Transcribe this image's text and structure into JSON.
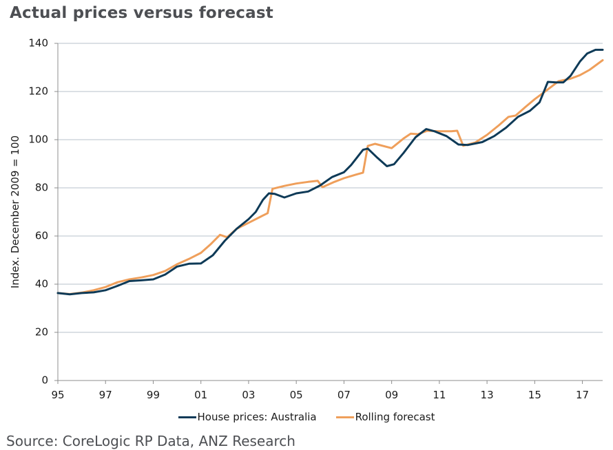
{
  "title": "Actual prices versus forecast",
  "source": "Source: CoreLogic RP Data, ANZ Research",
  "colors": {
    "house_prices": "#0e3a57",
    "rolling_forecast": "#ef9f5b",
    "grid": "#b7c2cb",
    "axis": "#8c8c8c"
  },
  "chart_data": {
    "type": "line",
    "title": "Actual prices versus forecast",
    "xlabel": "",
    "ylabel": "Index. December 2009 = 100",
    "xlim": [
      1995,
      2017.85
    ],
    "ylim": [
      0,
      140
    ],
    "yticks": [
      0,
      20,
      40,
      60,
      80,
      100,
      120,
      140
    ],
    "xticks": [
      {
        "value": 1995,
        "label": "95"
      },
      {
        "value": 1997,
        "label": "97"
      },
      {
        "value": 1999,
        "label": "99"
      },
      {
        "value": 2001,
        "label": "01"
      },
      {
        "value": 2003,
        "label": "03"
      },
      {
        "value": 2005,
        "label": "05"
      },
      {
        "value": 2007,
        "label": "07"
      },
      {
        "value": 2009,
        "label": "09"
      },
      {
        "value": 2011,
        "label": "11"
      },
      {
        "value": 2013,
        "label": "13"
      },
      {
        "value": 2015,
        "label": "15"
      },
      {
        "value": 2017,
        "label": "17"
      }
    ],
    "grid": true,
    "legend_position": "bottom-center",
    "series": [
      {
        "name": "House prices: Australia",
        "color": "#0e3a57",
        "points": [
          [
            1995.0,
            36.3
          ],
          [
            1995.5,
            35.8
          ],
          [
            1996.0,
            36.3
          ],
          [
            1996.5,
            36.6
          ],
          [
            1997.0,
            37.5
          ],
          [
            1997.5,
            39.3
          ],
          [
            1998.0,
            41.3
          ],
          [
            1998.5,
            41.6
          ],
          [
            1999.0,
            42.0
          ],
          [
            1999.5,
            44.0
          ],
          [
            2000.0,
            47.3
          ],
          [
            2000.5,
            48.5
          ],
          [
            2001.0,
            48.6
          ],
          [
            2001.5,
            52.0
          ],
          [
            2002.0,
            58.0
          ],
          [
            2002.5,
            63.0
          ],
          [
            2003.0,
            67.0
          ],
          [
            2003.3,
            70.0
          ],
          [
            2003.6,
            75.0
          ],
          [
            2003.85,
            77.7
          ],
          [
            2004.1,
            77.5
          ],
          [
            2004.5,
            76.0
          ],
          [
            2005.0,
            77.7
          ],
          [
            2005.5,
            78.5
          ],
          [
            2006.0,
            81.0
          ],
          [
            2006.5,
            84.5
          ],
          [
            2007.0,
            86.5
          ],
          [
            2007.3,
            89.5
          ],
          [
            2007.8,
            95.8
          ],
          [
            2008.0,
            96.3
          ],
          [
            2008.4,
            92.5
          ],
          [
            2008.8,
            89.0
          ],
          [
            2009.1,
            89.8
          ],
          [
            2009.5,
            94.5
          ],
          [
            2010.0,
            101.0
          ],
          [
            2010.45,
            104.4
          ],
          [
            2010.8,
            103.5
          ],
          [
            2011.3,
            101.5
          ],
          [
            2011.8,
            98.0
          ],
          [
            2012.2,
            97.8
          ],
          [
            2012.8,
            99.0
          ],
          [
            2013.3,
            101.5
          ],
          [
            2013.8,
            105.0
          ],
          [
            2014.3,
            109.5
          ],
          [
            2014.8,
            112.0
          ],
          [
            2015.2,
            115.5
          ],
          [
            2015.55,
            124.0
          ],
          [
            2015.9,
            123.8
          ],
          [
            2016.2,
            123.8
          ],
          [
            2016.5,
            126.5
          ],
          [
            2016.9,
            132.5
          ],
          [
            2017.2,
            135.8
          ],
          [
            2017.55,
            137.3
          ],
          [
            2017.85,
            137.3
          ]
        ]
      },
      {
        "name": "Rolling forecast",
        "color": "#ef9f5b",
        "points": [
          [
            1995.0,
            36.3
          ],
          [
            1995.5,
            35.9
          ],
          [
            1996.0,
            36.5
          ],
          [
            1996.5,
            37.5
          ],
          [
            1997.0,
            38.8
          ],
          [
            1997.5,
            40.8
          ],
          [
            1998.0,
            42.0
          ],
          [
            1998.5,
            42.8
          ],
          [
            1999.0,
            43.8
          ],
          [
            1999.5,
            45.5
          ],
          [
            2000.0,
            48.3
          ],
          [
            2000.5,
            50.5
          ],
          [
            2001.0,
            53.0
          ],
          [
            2001.4,
            56.5
          ],
          [
            2001.8,
            60.5
          ],
          [
            2002.1,
            59.5
          ],
          [
            2002.5,
            63.0
          ],
          [
            2003.0,
            65.5
          ],
          [
            2003.5,
            68.0
          ],
          [
            2003.8,
            69.5
          ],
          [
            2004.0,
            79.6
          ],
          [
            2004.5,
            80.8
          ],
          [
            2005.0,
            81.8
          ],
          [
            2005.5,
            82.5
          ],
          [
            2005.9,
            82.9
          ],
          [
            2006.1,
            80.3
          ],
          [
            2006.6,
            82.5
          ],
          [
            2007.0,
            84.0
          ],
          [
            2007.5,
            85.5
          ],
          [
            2007.8,
            86.3
          ],
          [
            2008.0,
            97.4
          ],
          [
            2008.3,
            98.3
          ],
          [
            2009.0,
            96.5
          ],
          [
            2009.5,
            100.5
          ],
          [
            2009.8,
            102.5
          ],
          [
            2010.1,
            102.3
          ],
          [
            2010.5,
            103.7
          ],
          [
            2011.0,
            103.5
          ],
          [
            2011.5,
            103.5
          ],
          [
            2011.75,
            103.7
          ],
          [
            2012.0,
            97.5
          ],
          [
            2012.5,
            98.8
          ],
          [
            2013.0,
            102.0
          ],
          [
            2013.5,
            106.0
          ],
          [
            2013.9,
            109.5
          ],
          [
            2014.2,
            110.0
          ],
          [
            2014.6,
            113.5
          ],
          [
            2015.0,
            116.8
          ],
          [
            2015.5,
            120.5
          ],
          [
            2016.0,
            124.3
          ],
          [
            2016.5,
            125.3
          ],
          [
            2016.9,
            126.8
          ],
          [
            2017.3,
            129.0
          ],
          [
            2017.85,
            133.0
          ]
        ]
      }
    ]
  }
}
